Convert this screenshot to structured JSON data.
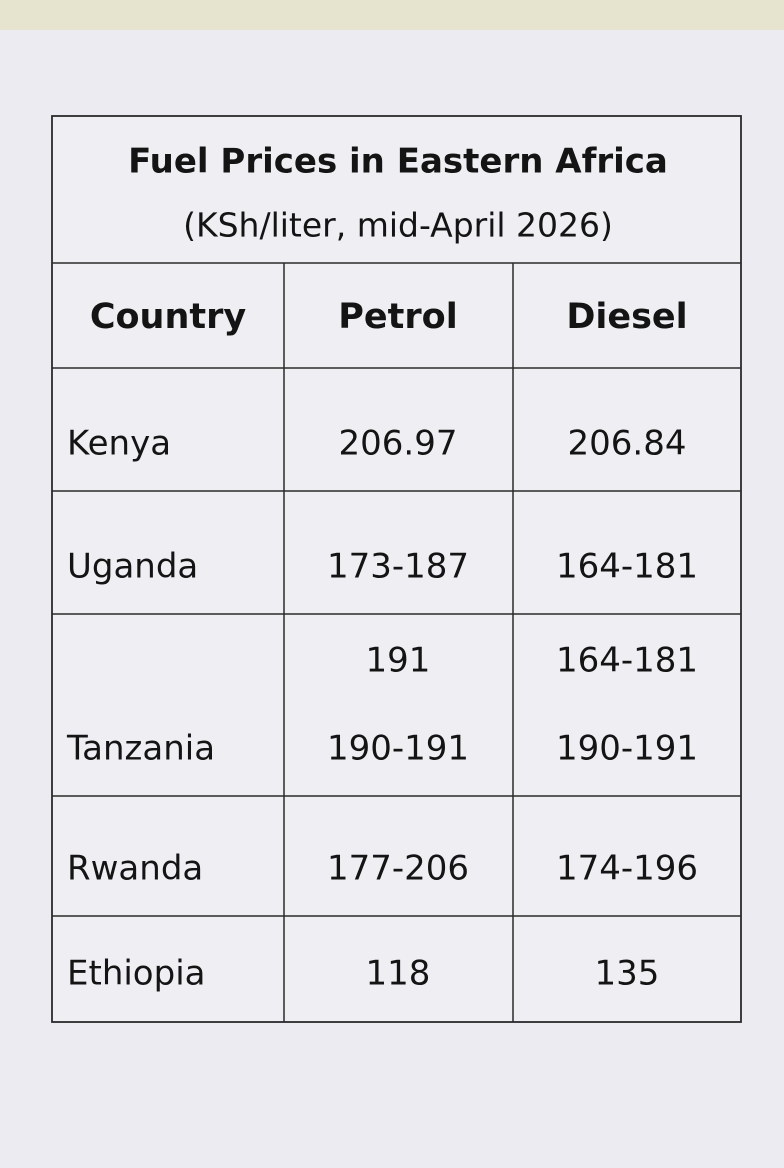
{
  "header": {
    "title": "Fuel Prices in Eastern Africa",
    "subtitle": "(KSh/liter, mid-April 2026)"
  },
  "table": {
    "columns": [
      "Country",
      "Petrol",
      "Diesel"
    ],
    "rows": [
      [
        "Kenya",
        [
          "206.97"
        ],
        [
          "206.84"
        ]
      ],
      [
        "Uganda",
        [
          "173-187"
        ],
        [
          "164-181"
        ]
      ],
      [
        "Tanzania",
        [
          "191",
          "190-191"
        ],
        [
          "164-181",
          "190-191"
        ]
      ],
      [
        "Rwanda",
        [
          "177-206"
        ],
        [
          "174-196"
        ]
      ],
      [
        "Ethiopia",
        [
          "118"
        ],
        [
          "135"
        ]
      ]
    ]
  }
}
